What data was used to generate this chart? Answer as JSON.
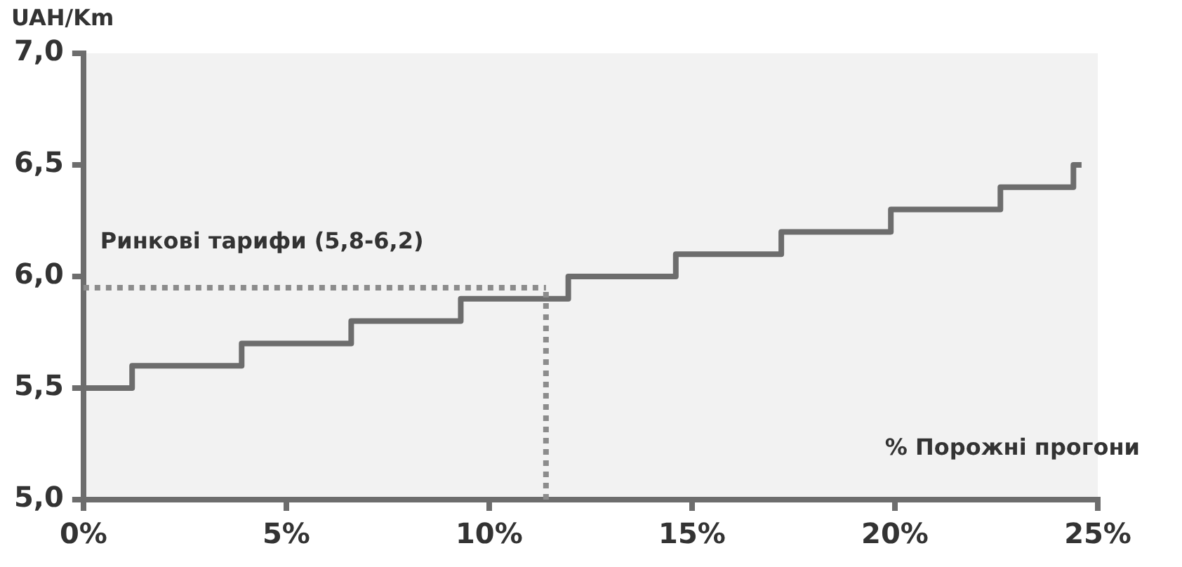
{
  "chart_data": {
    "type": "step",
    "ylabel": "UAH/Km",
    "xlabel": "% Порожні прогони",
    "x": [
      0,
      1.2,
      3.9,
      6.6,
      9.3,
      11.95,
      14.6,
      17.2,
      19.9,
      22.6,
      24.4,
      24.6
    ],
    "series": [
      {
        "color": "#6d6d6d",
        "values": [
          5.5,
          5.6,
          5.7,
          5.8,
          5.9,
          6.0,
          6.1,
          6.2,
          6.3,
          6.4,
          6.5,
          6.5
        ]
      }
    ],
    "xlim": [
      0,
      25
    ],
    "xticks": [
      {
        "value": 0,
        "label": "0%"
      },
      {
        "value": 5,
        "label": "5%"
      },
      {
        "value": 10,
        "label": "10%"
      },
      {
        "value": 15,
        "label": "15%"
      },
      {
        "value": 20,
        "label": "20%"
      },
      {
        "value": 25,
        "label": "25%"
      }
    ],
    "ylim": [
      5,
      7
    ],
    "yticks": [
      {
        "value": 5,
        "label": "5,0"
      },
      {
        "value": 5.5,
        "label": "5,5"
      },
      {
        "value": 6,
        "label": "6,0"
      },
      {
        "value": 6.5,
        "label": "6,5"
      },
      {
        "value": 7,
        "label": "7,0"
      }
    ],
    "ref_lines": [
      {
        "axis": "y",
        "value": 5.95,
        "label": "Ринкові тарифи (5,8-6,2)",
        "color": "#8c8c8c",
        "line_style": "dotted"
      },
      {
        "axis": "x",
        "value": 11.4,
        "color": "#8c8c8c",
        "line_style": "dotted"
      }
    ],
    "grid": false,
    "legend": false,
    "marker": "none",
    "line_style": "solid"
  }
}
